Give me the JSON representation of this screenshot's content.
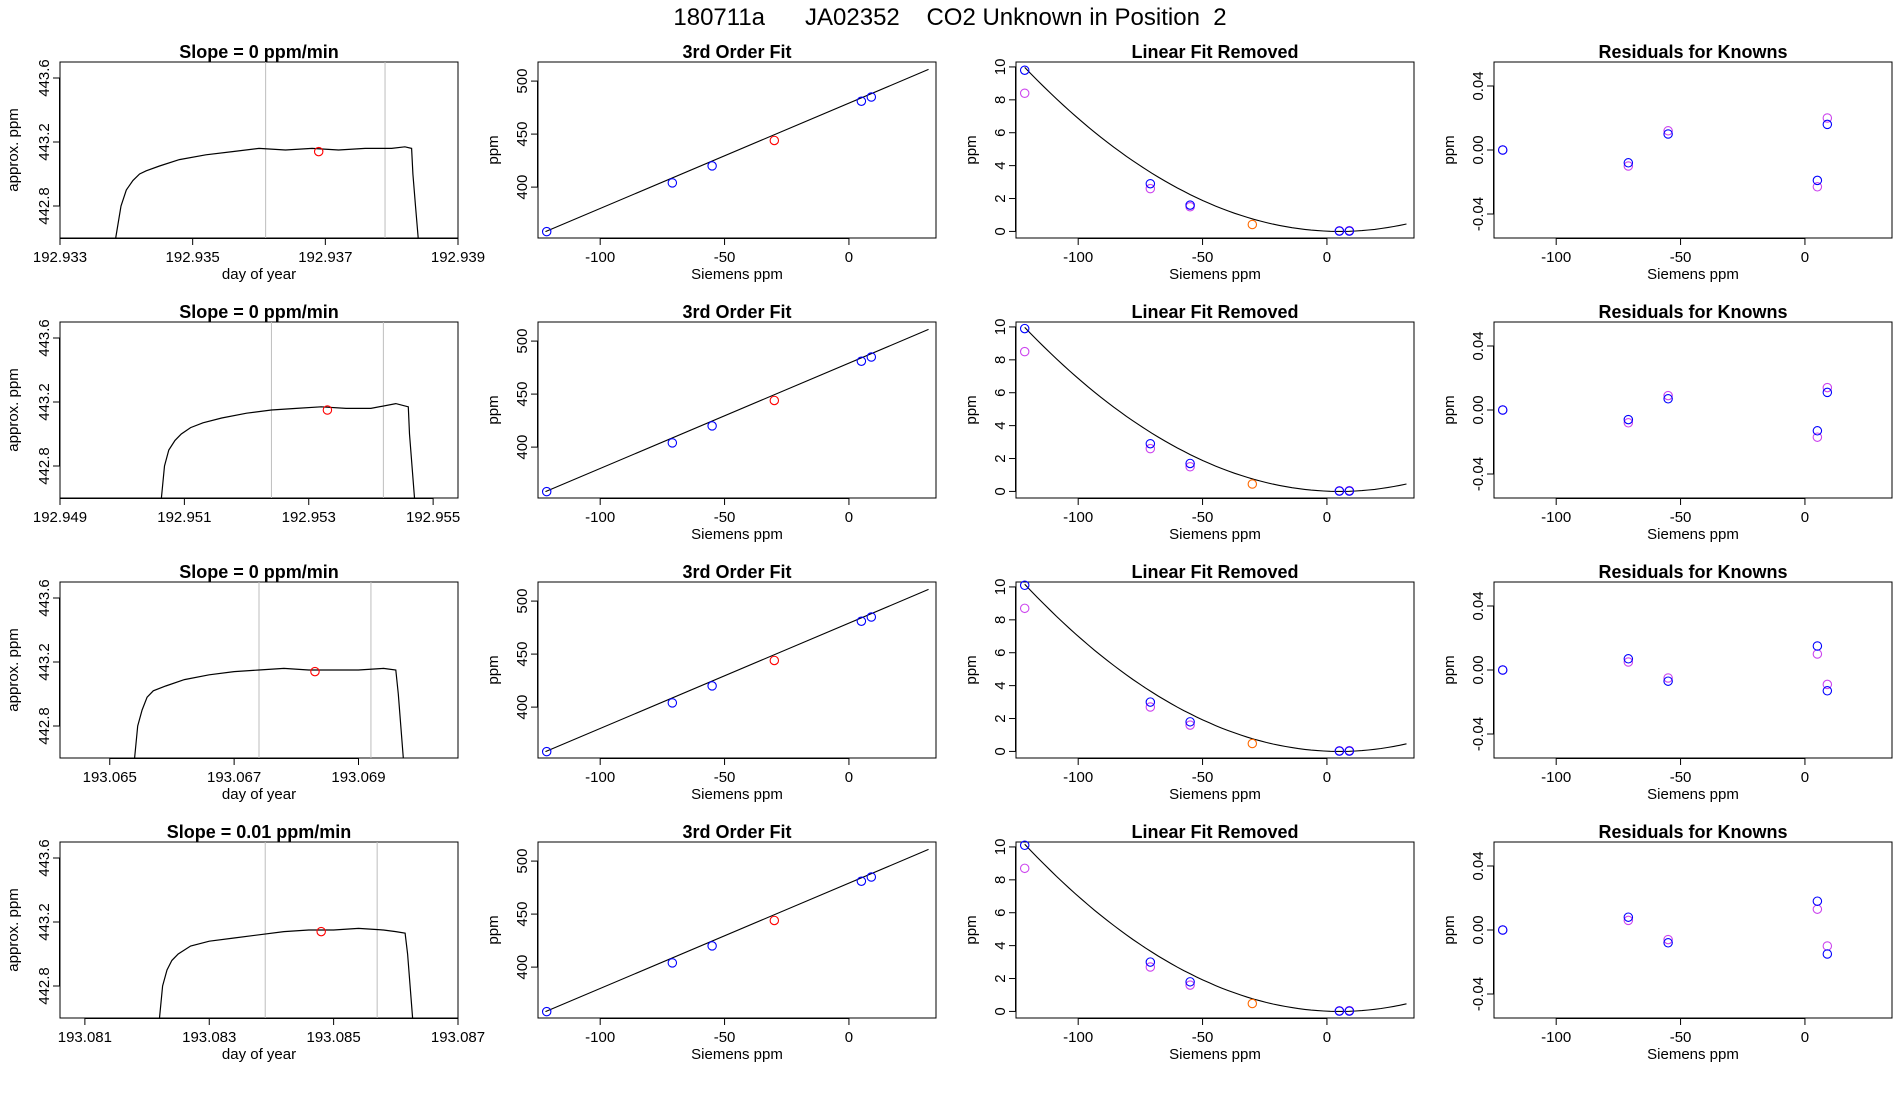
{
  "title": "180711a      JA02352    CO2 Unknown in Position  2",
  "colors": {
    "line": "#000000",
    "known": "#0000ff",
    "unknown": "#ff0000",
    "raw": "#cc44ee",
    "unknown_fit": "#ff6a00",
    "vline": "#bebebe"
  },
  "chart_data": [
    {
      "type": "line",
      "title": "Slope =  0  ppm/min",
      "xlabel": "day of year",
      "ylabel": "approx. ppm",
      "xlim": [
        192.933,
        192.939
      ],
      "ylim": [
        442.6,
        443.7
      ],
      "xticks": [
        192.933,
        192.935,
        192.937,
        192.939
      ],
      "xtick_labels": [
        "192.933",
        "192.935",
        "192.937",
        "192.939"
      ],
      "yticks": [
        442.8,
        443.2,
        443.6
      ],
      "ytick_labels": [
        "442.8",
        "443.2",
        "443.6"
      ],
      "vlines": [
        192.9361,
        192.9379
      ],
      "x": [
        192.93384,
        192.93392,
        192.934,
        192.9341,
        192.9342,
        192.9343,
        192.9345,
        192.9348,
        192.9352,
        192.9356,
        192.936,
        192.9364,
        192.9368,
        192.9372,
        192.9376,
        192.938,
        192.9382,
        192.9383,
        192.93832,
        192.93836,
        192.9384
      ],
      "y": [
        442.6,
        442.8,
        442.9,
        442.96,
        443.0,
        443.02,
        443.05,
        443.09,
        443.12,
        443.14,
        443.16,
        443.15,
        443.16,
        443.15,
        443.16,
        443.16,
        443.17,
        443.16,
        443.0,
        442.8,
        442.6
      ],
      "marker": {
        "x": 192.9369,
        "y": 443.14
      }
    },
    {
      "type": "line",
      "title": "Slope =  0  ppm/min",
      "xlabel": "",
      "ylabel": "approx. ppm",
      "xlim": [
        192.949,
        192.9554
      ],
      "ylim": [
        442.6,
        443.7
      ],
      "xticks": [
        192.949,
        192.951,
        192.953,
        192.955
      ],
      "xtick_labels": [
        "192.949",
        "192.951",
        "192.953",
        "192.955"
      ],
      "yticks": [
        442.8,
        443.2,
        443.6
      ],
      "ytick_labels": [
        "442.8",
        "443.2",
        "443.6"
      ],
      "vlines": [
        192.9524,
        192.9542
      ],
      "x": [
        192.95063,
        192.95068,
        192.95075,
        192.95085,
        192.95095,
        192.9511,
        192.9513,
        192.9516,
        192.952,
        192.9524,
        192.9528,
        192.9532,
        192.9536,
        192.954,
        192.9544,
        192.9546,
        192.95462,
        192.95466,
        192.9547
      ],
      "y": [
        442.6,
        442.8,
        442.9,
        442.96,
        443.0,
        443.04,
        443.07,
        443.1,
        443.13,
        443.15,
        443.16,
        443.17,
        443.16,
        443.16,
        443.19,
        443.17,
        443.0,
        442.8,
        442.6
      ],
      "marker": {
        "x": 192.9533,
        "y": 443.15
      }
    },
    {
      "type": "line",
      "title": "Slope =  0  ppm/min",
      "xlabel": "day of year",
      "ylabel": "approx. ppm",
      "xlim": [
        193.0642,
        193.0706
      ],
      "ylim": [
        442.6,
        443.7
      ],
      "xticks": [
        193.065,
        193.067,
        193.069
      ],
      "xtick_labels": [
        "193.065",
        "193.067",
        "193.069"
      ],
      "yticks": [
        442.8,
        443.2,
        443.6
      ],
      "ytick_labels": [
        "442.8",
        "443.2",
        "443.6"
      ],
      "vlines": [
        193.0674,
        193.0692
      ],
      "x": [
        193.0654,
        193.06545,
        193.06552,
        193.0656,
        193.0657,
        193.0659,
        193.0662,
        193.0666,
        193.067,
        193.0674,
        193.0678,
        193.0682,
        193.0686,
        193.069,
        193.0694,
        193.0696,
        193.06964,
        193.06968,
        193.06972
      ],
      "y": [
        442.6,
        442.8,
        442.9,
        442.98,
        443.02,
        443.05,
        443.09,
        443.12,
        443.14,
        443.15,
        443.16,
        443.15,
        443.15,
        443.15,
        443.16,
        443.15,
        443.0,
        442.8,
        442.6
      ],
      "marker": {
        "x": 193.0683,
        "y": 443.14
      }
    },
    {
      "type": "line",
      "title": "Slope =  0.01  ppm/min",
      "xlabel": "day of year",
      "ylabel": "approx. ppm",
      "xlim": [
        193.0806,
        193.087
      ],
      "ylim": [
        442.6,
        443.7
      ],
      "xticks": [
        193.081,
        193.083,
        193.085,
        193.087
      ],
      "xtick_labels": [
        "193.081",
        "193.083",
        "193.085",
        "193.087"
      ],
      "yticks": [
        442.8,
        443.2,
        443.6
      ],
      "ytick_labels": [
        "442.8",
        "443.2",
        "443.6"
      ],
      "vlines": [
        193.0839,
        193.0857
      ],
      "x": [
        193.0822,
        193.08225,
        193.08232,
        193.0824,
        193.0825,
        193.0827,
        193.083,
        193.0834,
        193.0838,
        193.0842,
        193.0846,
        193.085,
        193.0854,
        193.0858,
        193.086,
        193.08615,
        193.08619,
        193.08623,
        193.08627
      ],
      "y": [
        442.6,
        442.8,
        442.9,
        442.96,
        443.0,
        443.05,
        443.08,
        443.1,
        443.12,
        443.14,
        443.15,
        443.15,
        443.16,
        443.15,
        443.14,
        443.13,
        443.0,
        442.8,
        442.6
      ],
      "marker": {
        "x": 193.0848,
        "y": 443.14
      }
    },
    {
      "type": "scatter",
      "title": "3rd Order Fit",
      "xlabel": "Siemens ppm",
      "ylabel": "ppm",
      "xlim": [
        -125,
        35
      ],
      "ylim": [
        352,
        518
      ],
      "xticks": [
        -100,
        -50,
        0
      ],
      "xtick_labels": [
        "-100",
        "-50",
        "0"
      ],
      "yticks": [
        400,
        450,
        500
      ],
      "ytick_labels": [
        "400",
        "450",
        "500"
      ],
      "line": {
        "x": [
          -122,
          32
        ],
        "y": [
          358,
          511
        ]
      },
      "known_x": [
        -121.5,
        -71,
        -55,
        5,
        9
      ],
      "known_y": [
        358,
        404,
        420,
        481,
        485
      ],
      "unknown_x": [
        -30
      ],
      "unknown_y": [
        444
      ]
    },
    {
      "type": "scatter",
      "title": "3rd Order Fit",
      "xlabel": "Siemens ppm",
      "ylabel": "ppm",
      "xlim": [
        -125,
        35
      ],
      "ylim": [
        352,
        518
      ],
      "xticks": [
        -100,
        -50,
        0
      ],
      "xtick_labels": [
        "-100",
        "-50",
        "0"
      ],
      "yticks": [
        400,
        450,
        500
      ],
      "ytick_labels": [
        "400",
        "450",
        "500"
      ],
      "line": {
        "x": [
          -122,
          32
        ],
        "y": [
          358,
          511
        ]
      },
      "known_x": [
        -121.5,
        -71,
        -55,
        5,
        9
      ],
      "known_y": [
        358,
        404,
        420,
        481,
        485
      ],
      "unknown_x": [
        -30
      ],
      "unknown_y": [
        444
      ]
    },
    {
      "type": "scatter",
      "title": "3rd Order Fit",
      "xlabel": "Siemens ppm",
      "ylabel": "ppm",
      "xlim": [
        -125,
        35
      ],
      "ylim": [
        352,
        518
      ],
      "xticks": [
        -100,
        -50,
        0
      ],
      "xtick_labels": [
        "-100",
        "-50",
        "0"
      ],
      "yticks": [
        400,
        450,
        500
      ],
      "ytick_labels": [
        "400",
        "450",
        "500"
      ],
      "line": {
        "x": [
          -122,
          32
        ],
        "y": [
          358,
          511
        ]
      },
      "known_x": [
        -121.5,
        -71,
        -55,
        5,
        9
      ],
      "known_y": [
        358,
        404,
        420,
        481,
        485
      ],
      "unknown_x": [
        -30
      ],
      "unknown_y": [
        444
      ]
    },
    {
      "type": "scatter",
      "title": "3rd Order Fit",
      "xlabel": "Siemens ppm",
      "ylabel": "ppm",
      "xlim": [
        -125,
        35
      ],
      "ylim": [
        352,
        518
      ],
      "xticks": [
        -100,
        -50,
        0
      ],
      "xtick_labels": [
        "-100",
        "-50",
        "0"
      ],
      "yticks": [
        400,
        450,
        500
      ],
      "ytick_labels": [
        "400",
        "450",
        "500"
      ],
      "line": {
        "x": [
          -122,
          32
        ],
        "y": [
          358,
          511
        ]
      },
      "known_x": [
        -121.5,
        -71,
        -55,
        5,
        9
      ],
      "known_y": [
        358,
        404,
        420,
        481,
        485
      ],
      "unknown_x": [
        -30
      ],
      "unknown_y": [
        444
      ]
    },
    {
      "type": "scatter",
      "title": "Linear Fit Removed",
      "xlabel": "Siemens ppm",
      "ylabel": "ppm",
      "xlim": [
        -125,
        35
      ],
      "ylim": [
        -0.4,
        10.3
      ],
      "xticks": [
        -100,
        -50,
        0
      ],
      "xtick_labels": [
        "-100",
        "-50",
        "0"
      ],
      "yticks": [
        0,
        2,
        4,
        6,
        8,
        10
      ],
      "ytick_labels": [
        "0",
        "2",
        "4",
        "6",
        "8",
        "10"
      ],
      "curve": {
        "vertex": 5,
        "coef": 0.000623,
        "xmin": -121.5,
        "xmax": 32
      },
      "known_x": [
        -121.5,
        -71,
        -55,
        5,
        9
      ],
      "known_y": [
        9.8,
        2.9,
        1.6,
        0.02,
        0.02
      ],
      "raw_x": [
        -121.5,
        -71,
        -55,
        5,
        9
      ],
      "raw_y": [
        8.4,
        2.6,
        1.5,
        0.04,
        0.05
      ],
      "unknown_x": [
        -30
      ],
      "unknown_y": [
        0.42
      ]
    },
    {
      "type": "scatter",
      "title": "Linear Fit Removed",
      "xlabel": "Siemens ppm",
      "ylabel": "ppm",
      "xlim": [
        -125,
        35
      ],
      "ylim": [
        -0.4,
        10.3
      ],
      "xticks": [
        -100,
        -50,
        0
      ],
      "xtick_labels": [
        "-100",
        "-50",
        "0"
      ],
      "yticks": [
        0,
        2,
        4,
        6,
        8,
        10
      ],
      "ytick_labels": [
        "0",
        "2",
        "4",
        "6",
        "8",
        "10"
      ],
      "curve": {
        "vertex": 5,
        "coef": 0.000623,
        "xmin": -121.5,
        "xmax": 32
      },
      "known_x": [
        -121.5,
        -71,
        -55,
        5,
        9
      ],
      "known_y": [
        9.9,
        2.9,
        1.7,
        0.02,
        0.02
      ],
      "raw_x": [
        -121.5,
        -71,
        -55,
        5,
        9
      ],
      "raw_y": [
        8.5,
        2.6,
        1.5,
        0.04,
        0.05
      ],
      "unknown_x": [
        -30
      ],
      "unknown_y": [
        0.45
      ]
    },
    {
      "type": "scatter",
      "title": "Linear Fit Removed",
      "xlabel": "Siemens ppm",
      "ylabel": "ppm",
      "xlim": [
        -125,
        35
      ],
      "ylim": [
        -0.4,
        10.3
      ],
      "xticks": [
        -100,
        -50,
        0
      ],
      "xtick_labels": [
        "-100",
        "-50",
        "0"
      ],
      "yticks": [
        0,
        2,
        4,
        6,
        8,
        10
      ],
      "ytick_labels": [
        "0",
        "2",
        "4",
        "6",
        "8",
        "10"
      ],
      "curve": {
        "vertex": 5,
        "coef": 0.000635,
        "xmin": -121.5,
        "xmax": 32
      },
      "known_x": [
        -121.5,
        -71,
        -55,
        5,
        9
      ],
      "known_y": [
        10.1,
        3.0,
        1.8,
        0.02,
        0.02
      ],
      "raw_x": [
        -121.5,
        -71,
        -55,
        5,
        9
      ],
      "raw_y": [
        8.7,
        2.7,
        1.6,
        0.04,
        0.05
      ],
      "unknown_x": [
        -30
      ],
      "unknown_y": [
        0.48
      ]
    },
    {
      "type": "scatter",
      "title": "Linear Fit Removed",
      "xlabel": "Siemens ppm",
      "ylabel": "ppm",
      "xlim": [
        -125,
        35
      ],
      "ylim": [
        -0.4,
        10.3
      ],
      "xticks": [
        -100,
        -50,
        0
      ],
      "xtick_labels": [
        "-100",
        "-50",
        "0"
      ],
      "yticks": [
        0,
        2,
        4,
        6,
        8,
        10
      ],
      "ytick_labels": [
        "0",
        "2",
        "4",
        "6",
        "8",
        "10"
      ],
      "curve": {
        "vertex": 5,
        "coef": 0.000635,
        "xmin": -121.5,
        "xmax": 32
      },
      "known_x": [
        -121.5,
        -71,
        -55,
        5,
        9
      ],
      "known_y": [
        10.1,
        3.0,
        1.8,
        0.02,
        0.02
      ],
      "raw_x": [
        -121.5,
        -71,
        -55,
        5,
        9
      ],
      "raw_y": [
        8.7,
        2.7,
        1.6,
        0.04,
        0.05
      ],
      "unknown_x": [
        -30
      ],
      "unknown_y": [
        0.48
      ]
    },
    {
      "type": "scatter",
      "title": "Residuals for Knowns",
      "xlabel": "Siemens ppm",
      "ylabel": "ppm",
      "xlim": [
        -125,
        35
      ],
      "ylim": [
        -0.055,
        0.055
      ],
      "xticks": [
        -100,
        -50,
        0
      ],
      "xtick_labels": [
        "-100",
        "-50",
        "0"
      ],
      "yticks": [
        -0.04,
        0,
        0.04
      ],
      "ytick_labels": [
        "-0.04",
        "0.00",
        "0.04"
      ],
      "known_x": [
        -121.5,
        -71,
        -55,
        5,
        9
      ],
      "known_y": [
        0.0,
        -0.008,
        0.01,
        -0.019,
        0.016
      ],
      "raw_x": [
        -121.5,
        -71,
        -55,
        5,
        9
      ],
      "raw_y": [
        0.0,
        -0.01,
        0.012,
        -0.023,
        0.02
      ]
    },
    {
      "type": "scatter",
      "title": "Residuals for Knowns",
      "xlabel": "Siemens ppm",
      "ylabel": "ppm",
      "xlim": [
        -125,
        35
      ],
      "ylim": [
        -0.055,
        0.055
      ],
      "xticks": [
        -100,
        -50,
        0
      ],
      "xtick_labels": [
        "-100",
        "-50",
        "0"
      ],
      "yticks": [
        -0.04,
        0,
        0.04
      ],
      "ytick_labels": [
        "-0.04",
        "0.00",
        "0.04"
      ],
      "known_x": [
        -121.5,
        -71,
        -55,
        5,
        9
      ],
      "known_y": [
        0.0,
        -0.006,
        0.007,
        -0.013,
        0.011
      ],
      "raw_x": [
        -121.5,
        -71,
        -55,
        5,
        9
      ],
      "raw_y": [
        0.0,
        -0.008,
        0.009,
        -0.017,
        0.014
      ]
    },
    {
      "type": "scatter",
      "title": "Residuals for Knowns",
      "xlabel": "Siemens ppm",
      "ylabel": "ppm",
      "xlim": [
        -125,
        35
      ],
      "ylim": [
        -0.055,
        0.055
      ],
      "xticks": [
        -100,
        -50,
        0
      ],
      "xtick_labels": [
        "-100",
        "-50",
        "0"
      ],
      "yticks": [
        -0.04,
        0,
        0.04
      ],
      "ytick_labels": [
        "-0.04",
        "0.00",
        "0.04"
      ],
      "known_x": [
        -121.5,
        -71,
        -55,
        5,
        9
      ],
      "known_y": [
        0.0,
        0.007,
        -0.007,
        0.015,
        -0.013
      ],
      "raw_x": [
        -121.5,
        -71,
        -55,
        5,
        9
      ],
      "raw_y": [
        0.0,
        0.005,
        -0.005,
        0.01,
        -0.009
      ]
    },
    {
      "type": "scatter",
      "title": "Residuals for Knowns",
      "xlabel": "Siemens ppm",
      "ylabel": "ppm",
      "xlim": [
        -125,
        35
      ],
      "ylim": [
        -0.055,
        0.055
      ],
      "xticks": [
        -100,
        -50,
        0
      ],
      "xtick_labels": [
        "-100",
        "-50",
        "0"
      ],
      "yticks": [
        -0.04,
        0,
        0.04
      ],
      "ytick_labels": [
        "-0.04",
        "0.00",
        "0.04"
      ],
      "known_x": [
        -121.5,
        -71,
        -55,
        5,
        9
      ],
      "known_y": [
        0.0,
        0.008,
        -0.008,
        0.018,
        -0.015
      ],
      "raw_x": [
        -121.5,
        -71,
        -55,
        5,
        9
      ],
      "raw_y": [
        0.0,
        0.006,
        -0.006,
        0.013,
        -0.01
      ]
    }
  ]
}
